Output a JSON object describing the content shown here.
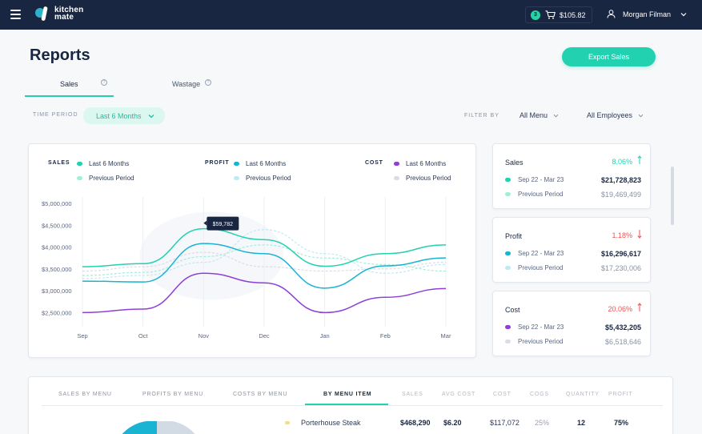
{
  "app": {
    "logo_line1": "kitchen",
    "logo_line2": "mate"
  },
  "header": {
    "cart_count": "3",
    "cart_total": "$105.82",
    "user_name": "Morgan Filman"
  },
  "page": {
    "title": "Reports",
    "export_label": "Export Sales"
  },
  "tabs": [
    {
      "label": "Sales",
      "help": "?"
    },
    {
      "label": "Wastage",
      "help": "?"
    }
  ],
  "filters": {
    "time_period_label": "TIME PERIOD",
    "time_period_value": "Last 6 Months",
    "filter_by_label": "FILTER BY",
    "menu_value": "All Menu",
    "employees_value": "All Employees"
  },
  "legend": [
    {
      "title": "SALES",
      "current": "Last 6 Months",
      "previous": "Previous Period",
      "color": "#22d1b0",
      "prev_color": "#a3eedb"
    },
    {
      "title": "PROFIT",
      "current": "Last 6 Months",
      "previous": "Previous Period",
      "color": "#19b3d3",
      "prev_color": "#bfe9f3"
    },
    {
      "title": "COST",
      "current": "Last 6 Months",
      "previous": "Previous Period",
      "color": "#8e3fd8",
      "prev_color": "#dcdce8"
    }
  ],
  "tooltip": {
    "value": "$59,782"
  },
  "chart_data": {
    "type": "line",
    "x": [
      "Sep",
      "Oct",
      "Nov",
      "Dec",
      "Jan",
      "Feb",
      "Mar"
    ],
    "y_ticks": [
      "$5,000,000",
      "$4,500,000",
      "$4,000,000",
      "$3,500,000",
      "$3,000,000",
      "$2,500,000"
    ],
    "ylim": [
      2250000,
      5000000
    ],
    "grid": true,
    "series": [
      {
        "name": "Sales",
        "period": "Last 6 Months",
        "color": "#22d1b0",
        "values": [
          3550000,
          3620000,
          4420000,
          4170000,
          3560000,
          3850000,
          4050000
        ]
      },
      {
        "name": "Profit",
        "period": "Last 6 Months",
        "color": "#19b3d3",
        "values": [
          3220000,
          3200000,
          4080000,
          3850000,
          3060000,
          3570000,
          3750000
        ]
      },
      {
        "name": "Cost",
        "period": "Last 6 Months",
        "color": "#8e3fd8",
        "values": [
          2500000,
          2580000,
          3400000,
          3180000,
          2500000,
          2850000,
          3050000
        ]
      },
      {
        "name": "Sales",
        "period": "Previous Period",
        "color": "#a3eedb",
        "values": [
          3350000,
          3420000,
          3780000,
          4050000,
          3750000,
          3600000,
          3450000
        ]
      },
      {
        "name": "Profit",
        "period": "Previous Period",
        "color": "#bfe9f3",
        "values": [
          3280000,
          3350000,
          3650000,
          4400000,
          3850000,
          3400000,
          3600000
        ]
      },
      {
        "name": "Cost",
        "period": "Previous Period",
        "color": "#dcdce8",
        "values": [
          3450000,
          3550000,
          3880000,
          3550000,
          3450000,
          3500000,
          3650000
        ]
      }
    ]
  },
  "stats": [
    {
      "title": "Sales",
      "change": "8.06%",
      "trend": "up",
      "trend_color": "#22d1b0",
      "current_label": "Sep 22 - Mar 23",
      "current_value": "$21,728,823",
      "previous_label": "Previous Period",
      "previous_value": "$19,469,499",
      "color": "#22d1b0",
      "prev_color": "#a3eedb"
    },
    {
      "title": "Profit",
      "change": "1.18%",
      "trend": "down",
      "trend_color": "#f05252",
      "current_label": "Sep 22 - Mar 23",
      "current_value": "$16,296,617",
      "previous_label": "Previous Period",
      "previous_value": "$17,230,006",
      "color": "#19b3d3",
      "prev_color": "#bfe9f3"
    },
    {
      "title": "Cost",
      "change": "20.06%",
      "trend": "up",
      "trend_color": "#f05252",
      "current_label": "Sep 22 - Mar 23",
      "current_value": "$5,432,205",
      "previous_label": "Previous Period",
      "previous_value": "$6,518,646",
      "color": "#8e3fd8",
      "prev_color": "#dcdce8"
    }
  ],
  "table": {
    "tabs": [
      "SALES BY MENU",
      "PROFITS BY MENU",
      "COSTS BY MENU",
      "BY MENU ITEM"
    ],
    "columns": [
      "SALES",
      "AVG COST",
      "COST",
      "COGS",
      "QUANTITY",
      "PROFIT"
    ],
    "rows": [
      {
        "name": "Porterhouse Steak",
        "sales": "$468,290",
        "avg_cost": "$6.20",
        "cost": "$117,072",
        "cogs": "25%",
        "quantity": "12",
        "profit": "75%"
      }
    ]
  }
}
